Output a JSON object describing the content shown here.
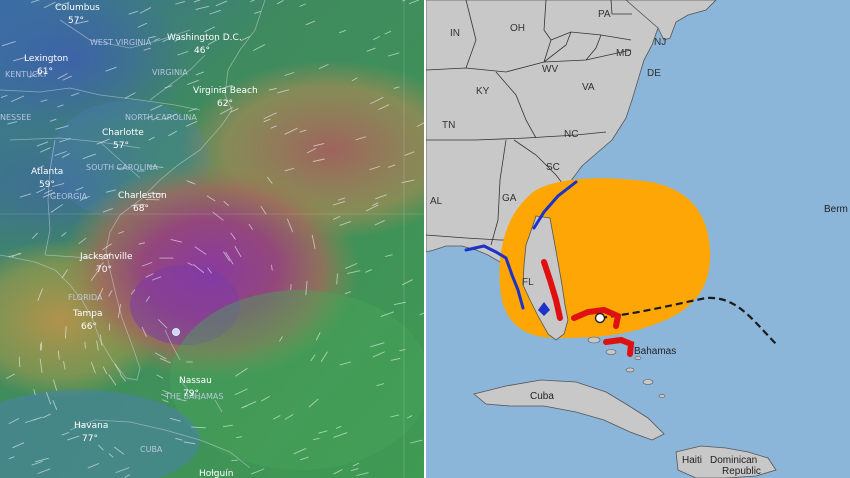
{
  "left_map": {
    "cities": [
      {
        "name": "Columbus",
        "temp": "57°"
      },
      {
        "name": "Washington D.C.",
        "temp": "46°"
      },
      {
        "name": "Lexington",
        "temp": "61°"
      },
      {
        "name": "Virginia Beach",
        "temp": "62°"
      },
      {
        "name": "Charlotte",
        "temp": "57°"
      },
      {
        "name": "Atlanta",
        "temp": "59°"
      },
      {
        "name": "Charleston",
        "temp": "68°"
      },
      {
        "name": "Jacksonville",
        "temp": "70°"
      },
      {
        "name": "Tampa",
        "temp": "66°"
      },
      {
        "name": "Nassau",
        "temp": "79°"
      },
      {
        "name": "Havana",
        "temp": "77°"
      },
      {
        "name": "Holguín",
        "temp": ""
      }
    ],
    "regions": [
      "WEST VIRGINIA",
      "VIRGINIA",
      "KENTUCKY",
      "NESSEE",
      "NORTH CAROLINA",
      "SOUTH CAROLINA",
      "GEORGIA",
      "FLORIDA",
      "THE BAHAMAS",
      "CUBA"
    ]
  },
  "right_map": {
    "states": [
      "IN",
      "OH",
      "PA",
      "MD",
      "NJ",
      "DE",
      "WV",
      "KY",
      "VA",
      "TN",
      "NC",
      "SC",
      "GA",
      "AL",
      "FL"
    ],
    "places": [
      "Cuba",
      "Bahamas",
      "Berm",
      "Haiti",
      "Dominican",
      "Republic"
    ],
    "colors": {
      "ocean": "#8cb5da",
      "land": "#c8c8c8",
      "cone": "#ffa500",
      "warning": "#e01010",
      "watch": "#1c32c8",
      "track": "#1a1a1a"
    }
  }
}
